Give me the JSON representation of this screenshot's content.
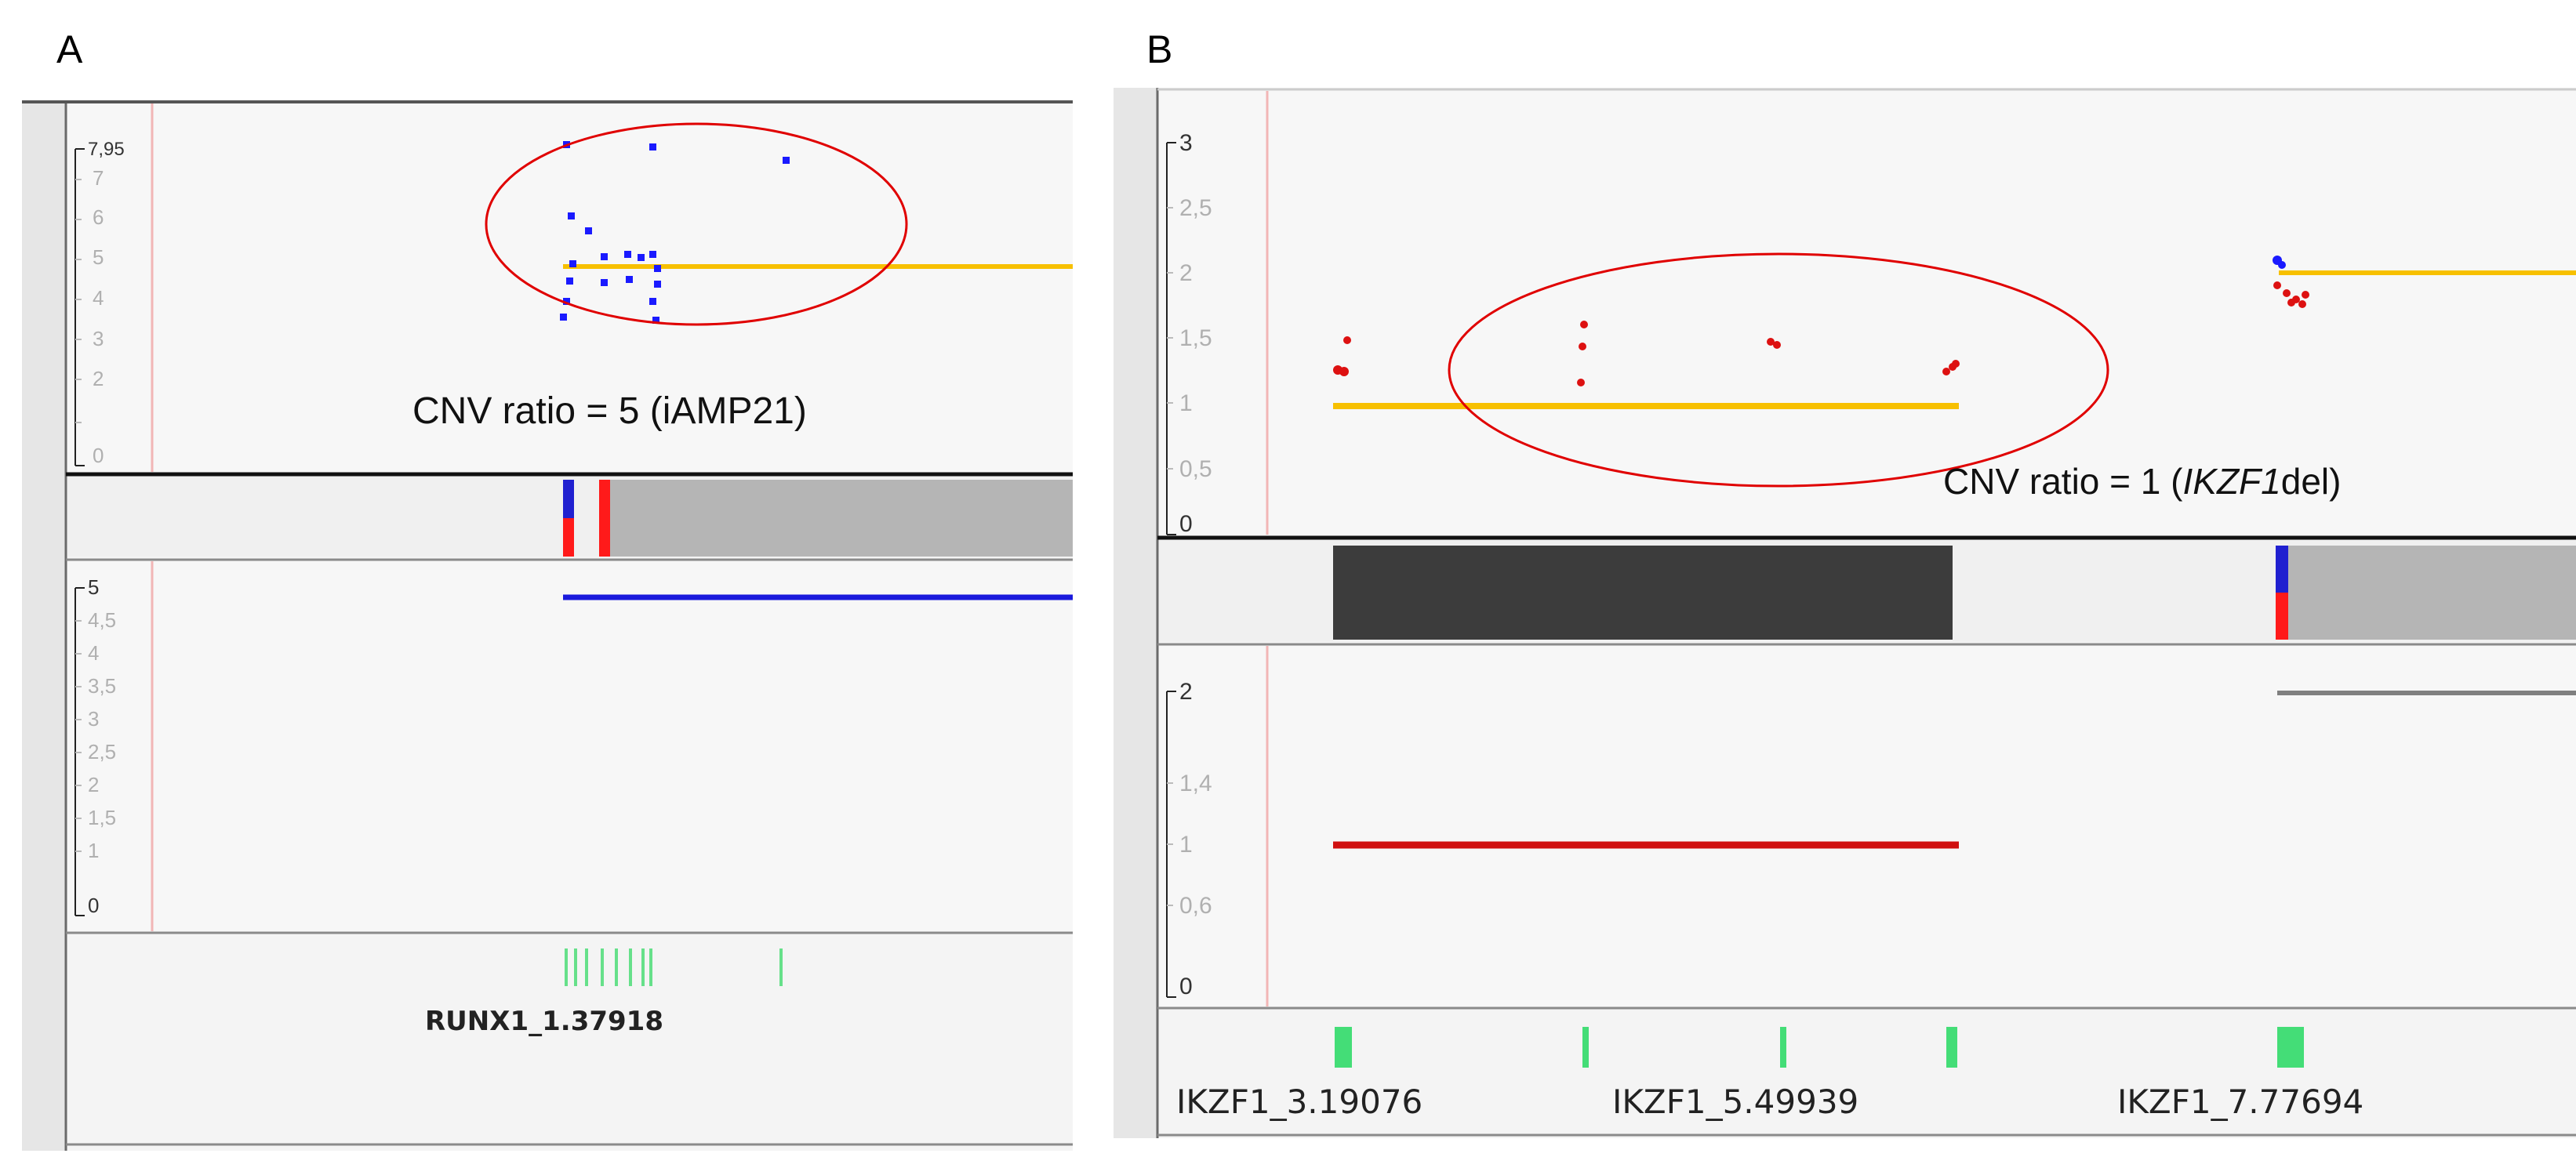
{
  "panels": [
    {
      "letter": "A",
      "cnv_track": {
        "axis_max_label": "7,95",
        "ticks": [
          "7",
          "6",
          "5",
          "4",
          "3",
          "2",
          "0"
        ],
        "annotation": "CNV ratio = 5 (iAMP21)",
        "points_color": "#1a1aff",
        "median_color": "#f7c000",
        "highlight_color": "#e00000"
      },
      "segment_track": {
        "ticks": [
          "5",
          "4,5",
          "4",
          "3,5",
          "3",
          "2,5",
          "2",
          "1,5",
          "1",
          "0"
        ],
        "line_color": "#1a1adc"
      },
      "gene_track": {
        "label": "RUNX1_1.37918",
        "exon_color": "#66e08a"
      }
    },
    {
      "letter": "B",
      "cnv_track": {
        "ticks": [
          "3",
          "2,5",
          "2",
          "1,5",
          "1",
          "0,5",
          "0"
        ],
        "annotation_prefix": "CNV ratio = 1 (",
        "annotation_italic": "IKZF1",
        "annotation_suffix": "del)",
        "points_color": "#dd1111",
        "median_color": "#f7c000",
        "highlight_color": "#e00000"
      },
      "segment_track": {
        "ticks": [
          "2",
          "1,4",
          "1",
          "0,6",
          "0"
        ],
        "line_color": "#d01010",
        "line_color_right": "#808080"
      },
      "gene_track": {
        "labels": [
          "IKZF1_3.19076",
          "IKZF1_5.49939",
          "IKZF1_7.77694"
        ],
        "exon_color": "#44dd77"
      }
    }
  ]
}
